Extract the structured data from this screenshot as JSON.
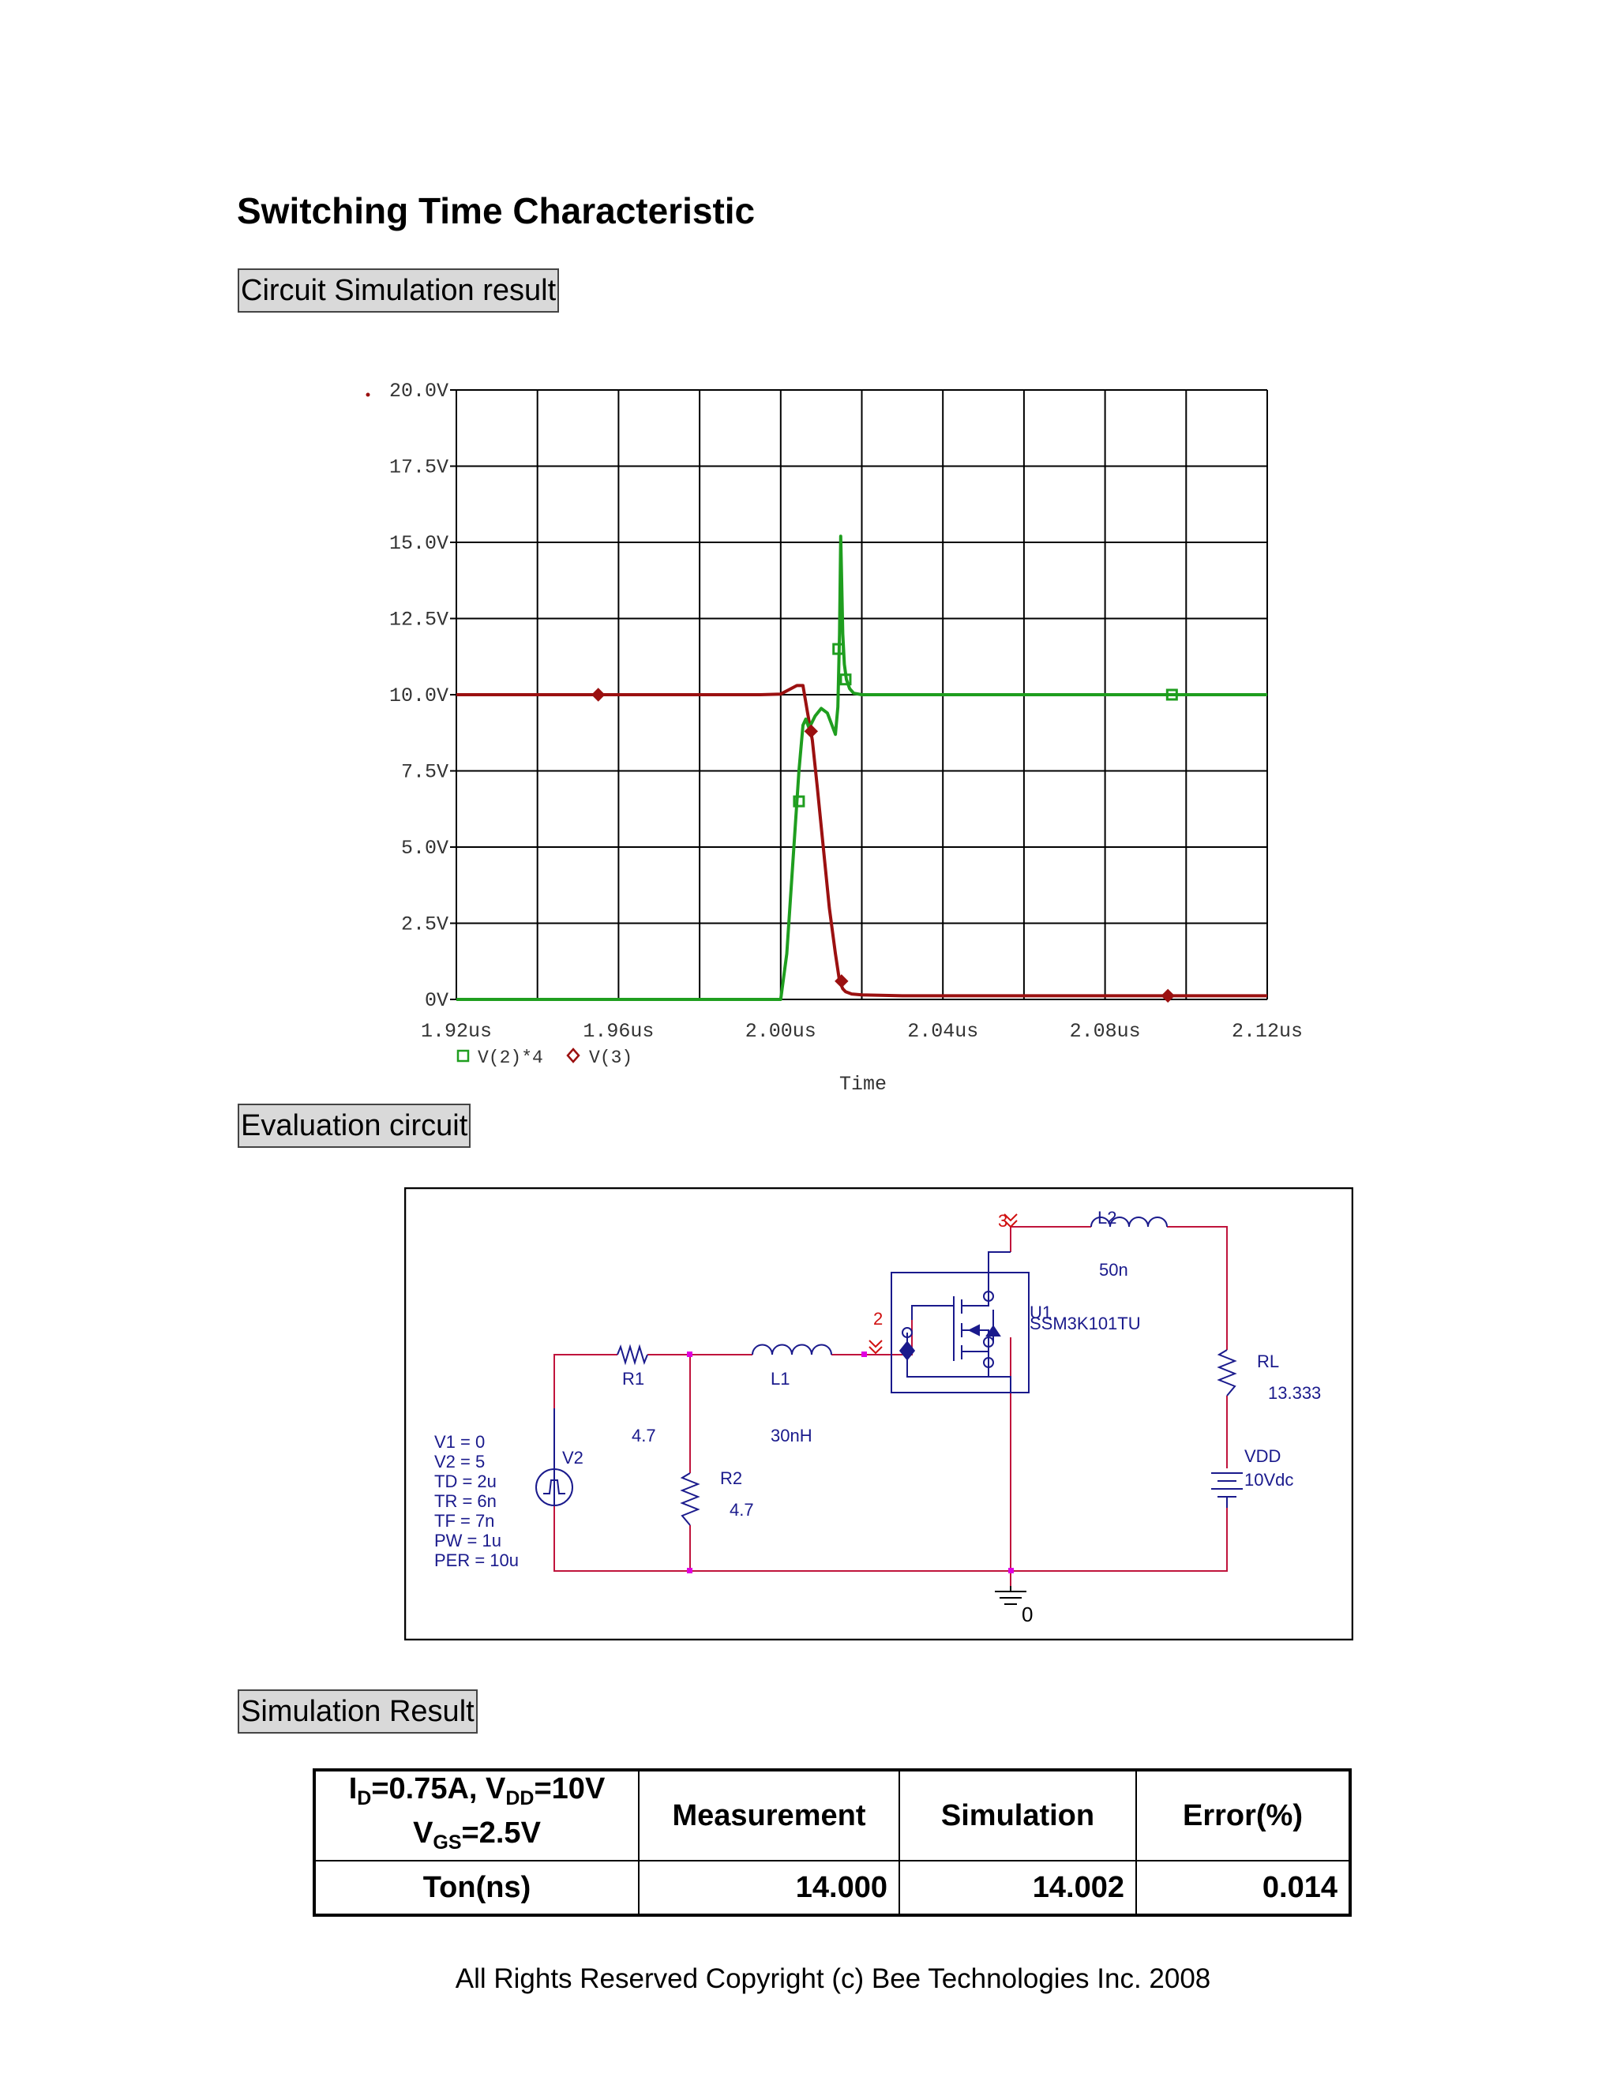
{
  "title": "Switching Time Characteristic",
  "sections": {
    "simulation": "Circuit Simulation result",
    "evaluation": "Evaluation circuit",
    "result": "Simulation Result"
  },
  "chart_data": {
    "type": "line",
    "xlabel": "Time",
    "x_ticks": [
      "1.92us",
      "1.96us",
      "2.00us",
      "2.04us",
      "2.08us",
      "2.12us"
    ],
    "y_ticks": [
      "0V",
      "2.5V",
      "5.0V",
      "7.5V",
      "10.0V",
      "12.5V",
      "15.0V",
      "17.5V",
      "20.0V"
    ],
    "xlim": [
      1.92,
      2.12
    ],
    "ylim": [
      0,
      20
    ],
    "x_unit": "us",
    "grid": true,
    "legend_position": "bottom-left",
    "series": [
      {
        "name": "V(2)*4",
        "color": "#1f9e1f",
        "marker": "square",
        "x": [
          1.92,
          2.0,
          2.0015,
          2.003,
          2.0045,
          2.0055,
          2.0062,
          2.007,
          2.0085,
          2.01,
          2.0115,
          2.0135,
          2.0141,
          2.0145,
          2.0148,
          2.015,
          2.0153,
          2.0157,
          2.0162,
          2.017,
          2.018,
          2.02,
          2.12
        ],
        "values": [
          0.0,
          0.0,
          1.5,
          4.5,
          7.5,
          9.0,
          9.2,
          8.9,
          9.3,
          9.55,
          9.4,
          8.7,
          9.6,
          12.0,
          15.2,
          14.0,
          12.0,
          11.0,
          10.5,
          10.2,
          10.05,
          10.0,
          10.0
        ],
        "marker_x": [
          2.0045,
          2.0142,
          2.016,
          2.0965
        ],
        "marker_y": [
          6.5,
          11.5,
          10.5,
          10.0
        ]
      },
      {
        "name": "V(3)",
        "color": "#9b1010",
        "marker": "diamond",
        "x": [
          1.92,
          1.995,
          2.0,
          2.004,
          2.0055,
          2.0065,
          2.0078,
          2.009,
          2.0105,
          2.012,
          2.0135,
          2.0145,
          2.0153,
          2.016,
          2.0175,
          2.02,
          2.03,
          2.12
        ],
        "values": [
          10.0,
          10.0,
          10.02,
          10.3,
          10.3,
          9.5,
          8.5,
          7.0,
          5.0,
          3.0,
          1.5,
          0.6,
          0.35,
          0.25,
          0.18,
          0.15,
          0.12,
          0.12
        ],
        "marker_x": [
          1.955,
          2.0075,
          2.015,
          2.0955
        ],
        "marker_y": [
          10.0,
          8.8,
          0.6,
          0.12
        ]
      }
    ]
  },
  "circuit": {
    "v1": {
      "name": "V2",
      "params": [
        "V1 = 0",
        "V2 = 5",
        "TD = 2u",
        "TR = 6n",
        "TF = 7n",
        "PW = 1u",
        "PER = 10u"
      ]
    },
    "r1": {
      "name": "R1",
      "value": "4.7"
    },
    "r2": {
      "name": "R2",
      "value": "4.7"
    },
    "l1": {
      "name": "L1",
      "value": "30nH"
    },
    "l2": {
      "name": "L2",
      "value": "50n"
    },
    "u1": {
      "name": "U1",
      "part": "SSM3K101TU"
    },
    "rl": {
      "name": "RL",
      "value": "13.333"
    },
    "vdd": {
      "name": "VDD",
      "value": "10Vdc"
    },
    "node_3": "3",
    "node_2": "2",
    "ground": "0"
  },
  "table": {
    "condition_line1": {
      "a": "I",
      "a_sub": "D",
      "b": "=0.75A, V",
      "b_sub": "DD",
      "c": "=10V"
    },
    "condition_line2": {
      "a": "V",
      "a_sub": "GS",
      "b": "=2.5V"
    },
    "headers": [
      "Measurement",
      "Simulation",
      "Error(%)"
    ],
    "rows": [
      {
        "label": "Ton(ns)",
        "measurement": "14.000",
        "simulation": "14.002",
        "error": "0.014"
      }
    ]
  },
  "copyright": "All Rights Reserved Copyright (c) Bee Technologies Inc. 2008"
}
